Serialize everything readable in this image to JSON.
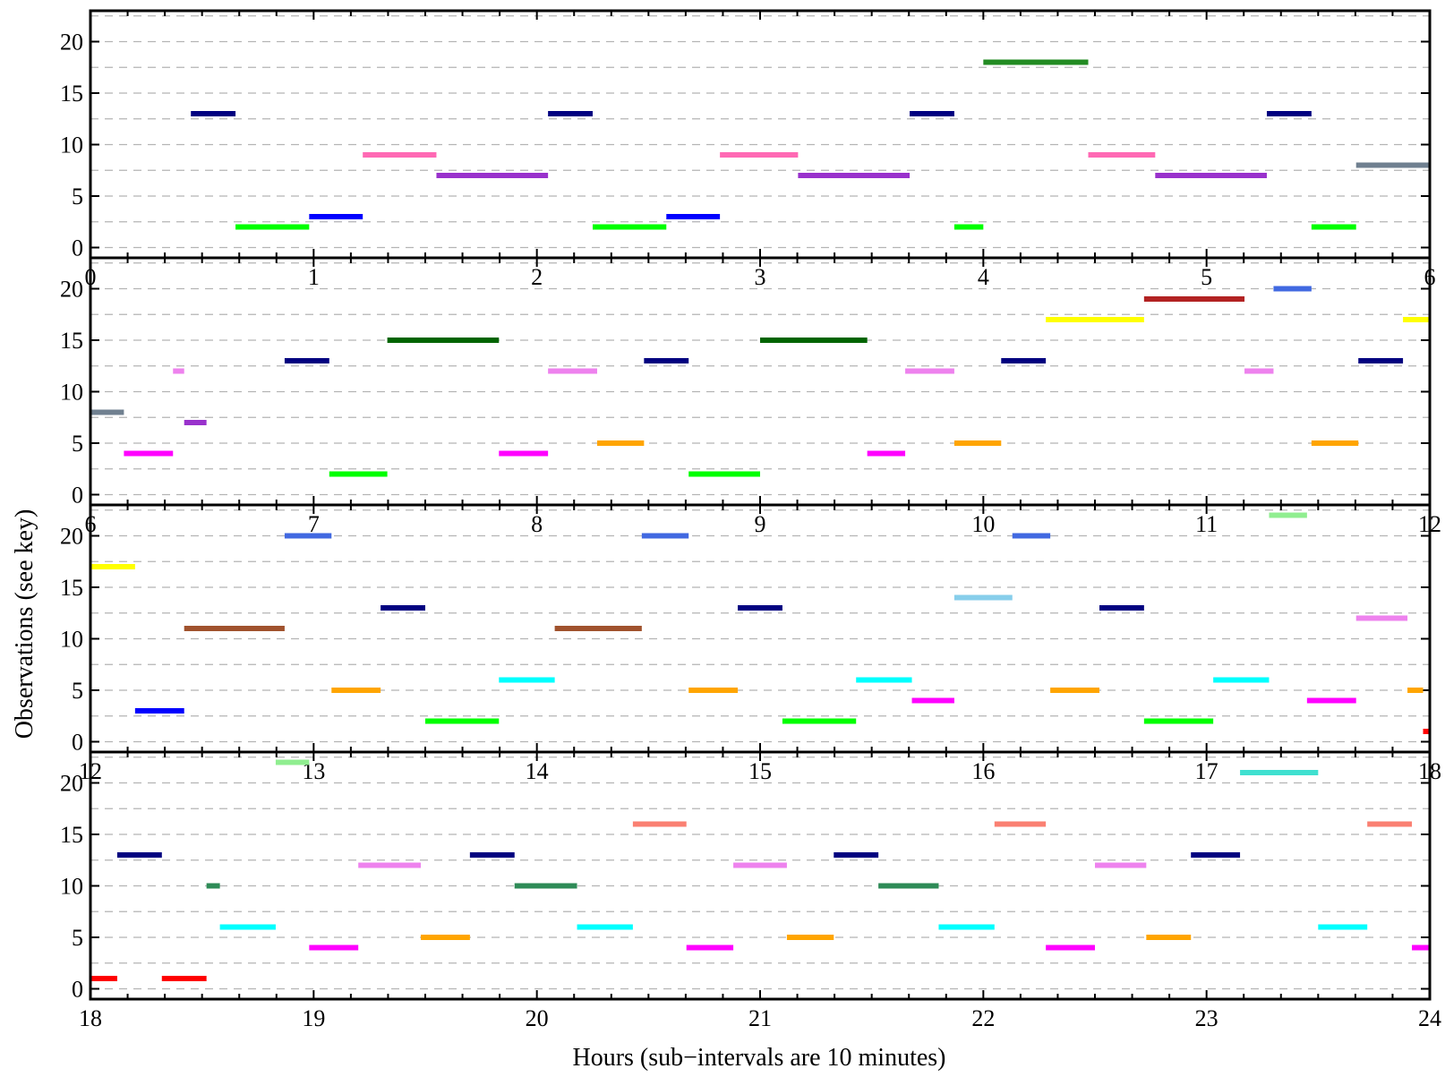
{
  "chart_data": {
    "type": "timeline",
    "title": "",
    "xlabel": "Hours (sub−intervals are 10 minutes)",
    "ylabel": "Observations (see key)",
    "ylim": [
      -1,
      23
    ],
    "yticks": [
      0,
      5,
      10,
      15,
      20
    ],
    "grid": "dashed horizontal every 2.5",
    "panels": [
      {
        "xlim": [
          0,
          6
        ],
        "xticks": [
          "0",
          "1",
          "2",
          "3",
          "4",
          "5",
          "6"
        ],
        "segments": [
          {
            "start": 0.45,
            "end": 0.65,
            "y": 13,
            "color": "#000080"
          },
          {
            "start": 0.65,
            "end": 0.98,
            "y": 2,
            "color": "#00ff00"
          },
          {
            "start": 0.98,
            "end": 1.22,
            "y": 3,
            "color": "#0000ff"
          },
          {
            "start": 1.22,
            "end": 1.55,
            "y": 9,
            "color": "#ff69b4"
          },
          {
            "start": 1.55,
            "end": 2.05,
            "y": 7,
            "color": "#9932cc"
          },
          {
            "start": 2.05,
            "end": 2.25,
            "y": 13,
            "color": "#000080"
          },
          {
            "start": 2.25,
            "end": 2.58,
            "y": 2,
            "color": "#00ff00"
          },
          {
            "start": 2.58,
            "end": 2.82,
            "y": 3,
            "color": "#0000ff"
          },
          {
            "start": 2.82,
            "end": 3.17,
            "y": 9,
            "color": "#ff69b4"
          },
          {
            "start": 3.17,
            "end": 3.67,
            "y": 7,
            "color": "#9932cc"
          },
          {
            "start": 3.67,
            "end": 3.87,
            "y": 13,
            "color": "#000080"
          },
          {
            "start": 3.87,
            "end": 4.0,
            "y": 2,
            "color": "#00ff00"
          },
          {
            "start": 4.0,
            "end": 4.47,
            "y": 18,
            "color": "#228b22"
          },
          {
            "start": 4.47,
            "end": 4.77,
            "y": 9,
            "color": "#ff69b4"
          },
          {
            "start": 4.77,
            "end": 5.27,
            "y": 7,
            "color": "#9932cc"
          },
          {
            "start": 5.27,
            "end": 5.47,
            "y": 13,
            "color": "#000080"
          },
          {
            "start": 5.47,
            "end": 5.67,
            "y": 2,
            "color": "#00ff00"
          },
          {
            "start": 5.67,
            "end": 6.0,
            "y": 8,
            "color": "#708090"
          }
        ]
      },
      {
        "xlim": [
          6,
          12
        ],
        "xticks": [
          "6",
          "7",
          "8",
          "9",
          "10",
          "11",
          "12"
        ],
        "segments": [
          {
            "start": 6.0,
            "end": 6.15,
            "y": 8,
            "color": "#708090"
          },
          {
            "start": 6.15,
            "end": 6.37,
            "y": 4,
            "color": "#ff00ff"
          },
          {
            "start": 6.37,
            "end": 6.42,
            "y": 12,
            "color": "#ee82ee"
          },
          {
            "start": 6.42,
            "end": 6.52,
            "y": 7,
            "color": "#9932cc"
          },
          {
            "start": 6.87,
            "end": 7.07,
            "y": 13,
            "color": "#000080"
          },
          {
            "start": 7.07,
            "end": 7.33,
            "y": 2,
            "color": "#00ff00"
          },
          {
            "start": 7.33,
            "end": 7.83,
            "y": 15,
            "color": "#006400"
          },
          {
            "start": 7.83,
            "end": 8.05,
            "y": 4,
            "color": "#ff00ff"
          },
          {
            "start": 8.05,
            "end": 8.27,
            "y": 12,
            "color": "#ee82ee"
          },
          {
            "start": 8.27,
            "end": 8.48,
            "y": 5,
            "color": "#ffa500"
          },
          {
            "start": 8.48,
            "end": 8.68,
            "y": 13,
            "color": "#000080"
          },
          {
            "start": 8.68,
            "end": 9.0,
            "y": 2,
            "color": "#00ff00"
          },
          {
            "start": 9.0,
            "end": 9.48,
            "y": 15,
            "color": "#006400"
          },
          {
            "start": 9.48,
            "end": 9.65,
            "y": 4,
            "color": "#ff00ff"
          },
          {
            "start": 9.65,
            "end": 9.87,
            "y": 12,
            "color": "#ee82ee"
          },
          {
            "start": 9.87,
            "end": 10.08,
            "y": 5,
            "color": "#ffa500"
          },
          {
            "start": 10.08,
            "end": 10.28,
            "y": 13,
            "color": "#000080"
          },
          {
            "start": 10.28,
            "end": 10.72,
            "y": 17,
            "color": "#ffff00"
          },
          {
            "start": 10.72,
            "end": 11.17,
            "y": 19,
            "color": "#b22222"
          },
          {
            "start": 11.17,
            "end": 11.3,
            "y": 12,
            "color": "#ee82ee"
          },
          {
            "start": 11.3,
            "end": 11.47,
            "y": 20,
            "color": "#4169e1"
          },
          {
            "start": 11.47,
            "end": 11.68,
            "y": 5,
            "color": "#ffa500"
          },
          {
            "start": 11.68,
            "end": 11.88,
            "y": 13,
            "color": "#000080"
          },
          {
            "start": 11.88,
            "end": 12.0,
            "y": 17,
            "color": "#ffff00"
          }
        ]
      },
      {
        "xlim": [
          12,
          18
        ],
        "xticks": [
          "12",
          "13",
          "14",
          "15",
          "16",
          "17",
          "18"
        ],
        "segments": [
          {
            "start": 12.0,
            "end": 12.2,
            "y": 17,
            "color": "#ffff00"
          },
          {
            "start": 12.2,
            "end": 12.42,
            "y": 3,
            "color": "#0000ff"
          },
          {
            "start": 12.42,
            "end": 12.87,
            "y": 11,
            "color": "#a0522d"
          },
          {
            "start": 12.87,
            "end": 13.08,
            "y": 20,
            "color": "#4169e1"
          },
          {
            "start": 13.08,
            "end": 13.3,
            "y": 5,
            "color": "#ffa500"
          },
          {
            "start": 13.3,
            "end": 13.5,
            "y": 13,
            "color": "#000080"
          },
          {
            "start": 13.5,
            "end": 13.83,
            "y": 2,
            "color": "#00ff00"
          },
          {
            "start": 13.83,
            "end": 14.08,
            "y": 6,
            "color": "#00ffff"
          },
          {
            "start": 14.08,
            "end": 14.47,
            "y": 11,
            "color": "#a0522d"
          },
          {
            "start": 14.47,
            "end": 14.68,
            "y": 20,
            "color": "#4169e1"
          },
          {
            "start": 14.68,
            "end": 14.9,
            "y": 5,
            "color": "#ffa500"
          },
          {
            "start": 14.9,
            "end": 15.1,
            "y": 13,
            "color": "#000080"
          },
          {
            "start": 15.1,
            "end": 15.43,
            "y": 2,
            "color": "#00ff00"
          },
          {
            "start": 15.43,
            "end": 15.68,
            "y": 6,
            "color": "#00ffff"
          },
          {
            "start": 15.68,
            "end": 15.87,
            "y": 4,
            "color": "#ff00ff"
          },
          {
            "start": 15.87,
            "end": 16.13,
            "y": 14,
            "color": "#87ceeb"
          },
          {
            "start": 16.13,
            "end": 16.3,
            "y": 20,
            "color": "#4169e1"
          },
          {
            "start": 16.3,
            "end": 16.52,
            "y": 5,
            "color": "#ffa500"
          },
          {
            "start": 16.52,
            "end": 16.72,
            "y": 13,
            "color": "#000080"
          },
          {
            "start": 16.72,
            "end": 17.03,
            "y": 2,
            "color": "#00ff00"
          },
          {
            "start": 17.03,
            "end": 17.28,
            "y": 6,
            "color": "#00ffff"
          },
          {
            "start": 17.28,
            "end": 17.45,
            "y": 22,
            "color": "#90ee90"
          },
          {
            "start": 17.45,
            "end": 17.67,
            "y": 4,
            "color": "#ff00ff"
          },
          {
            "start": 17.67,
            "end": 17.9,
            "y": 12,
            "color": "#ee82ee"
          },
          {
            "start": 17.9,
            "end": 17.97,
            "y": 5,
            "color": "#ffa500"
          },
          {
            "start": 17.97,
            "end": 18.0,
            "y": 1,
            "color": "#ff0000"
          }
        ]
      },
      {
        "xlim": [
          18,
          24
        ],
        "xticks": [
          "18",
          "19",
          "20",
          "21",
          "22",
          "23",
          "24"
        ],
        "segments": [
          {
            "start": 18.0,
            "end": 18.12,
            "y": 1,
            "color": "#ff0000"
          },
          {
            "start": 18.12,
            "end": 18.32,
            "y": 13,
            "color": "#000080"
          },
          {
            "start": 18.32,
            "end": 18.52,
            "y": 1,
            "color": "#ff0000"
          },
          {
            "start": 18.52,
            "end": 18.58,
            "y": 10,
            "color": "#2e8b57"
          },
          {
            "start": 18.58,
            "end": 18.83,
            "y": 6,
            "color": "#00ffff"
          },
          {
            "start": 18.83,
            "end": 18.98,
            "y": 22,
            "color": "#90ee90"
          },
          {
            "start": 18.98,
            "end": 19.2,
            "y": 4,
            "color": "#ff00ff"
          },
          {
            "start": 19.2,
            "end": 19.48,
            "y": 12,
            "color": "#ee82ee"
          },
          {
            "start": 19.48,
            "end": 19.7,
            "y": 5,
            "color": "#ffa500"
          },
          {
            "start": 19.7,
            "end": 19.9,
            "y": 13,
            "color": "#000080"
          },
          {
            "start": 19.9,
            "end": 20.18,
            "y": 10,
            "color": "#2e8b57"
          },
          {
            "start": 20.18,
            "end": 20.43,
            "y": 6,
            "color": "#00ffff"
          },
          {
            "start": 20.43,
            "end": 20.67,
            "y": 16,
            "color": "#fa8072"
          },
          {
            "start": 20.67,
            "end": 20.88,
            "y": 4,
            "color": "#ff00ff"
          },
          {
            "start": 20.88,
            "end": 21.12,
            "y": 12,
            "color": "#ee82ee"
          },
          {
            "start": 21.12,
            "end": 21.33,
            "y": 5,
            "color": "#ffa500"
          },
          {
            "start": 21.33,
            "end": 21.53,
            "y": 13,
            "color": "#000080"
          },
          {
            "start": 21.53,
            "end": 21.8,
            "y": 10,
            "color": "#2e8b57"
          },
          {
            "start": 21.8,
            "end": 22.05,
            "y": 6,
            "color": "#00ffff"
          },
          {
            "start": 22.05,
            "end": 22.28,
            "y": 16,
            "color": "#fa8072"
          },
          {
            "start": 22.28,
            "end": 22.5,
            "y": 4,
            "color": "#ff00ff"
          },
          {
            "start": 22.5,
            "end": 22.73,
            "y": 12,
            "color": "#ee82ee"
          },
          {
            "start": 22.73,
            "end": 22.93,
            "y": 5,
            "color": "#ffa500"
          },
          {
            "start": 22.93,
            "end": 23.15,
            "y": 13,
            "color": "#000080"
          },
          {
            "start": 23.15,
            "end": 23.5,
            "y": 21,
            "color": "#40e0d0"
          },
          {
            "start": 23.5,
            "end": 23.72,
            "y": 6,
            "color": "#00ffff"
          },
          {
            "start": 23.72,
            "end": 23.92,
            "y": 16,
            "color": "#fa8072"
          },
          {
            "start": 23.92,
            "end": 24.0,
            "y": 4,
            "color": "#ff00ff"
          }
        ]
      }
    ]
  }
}
